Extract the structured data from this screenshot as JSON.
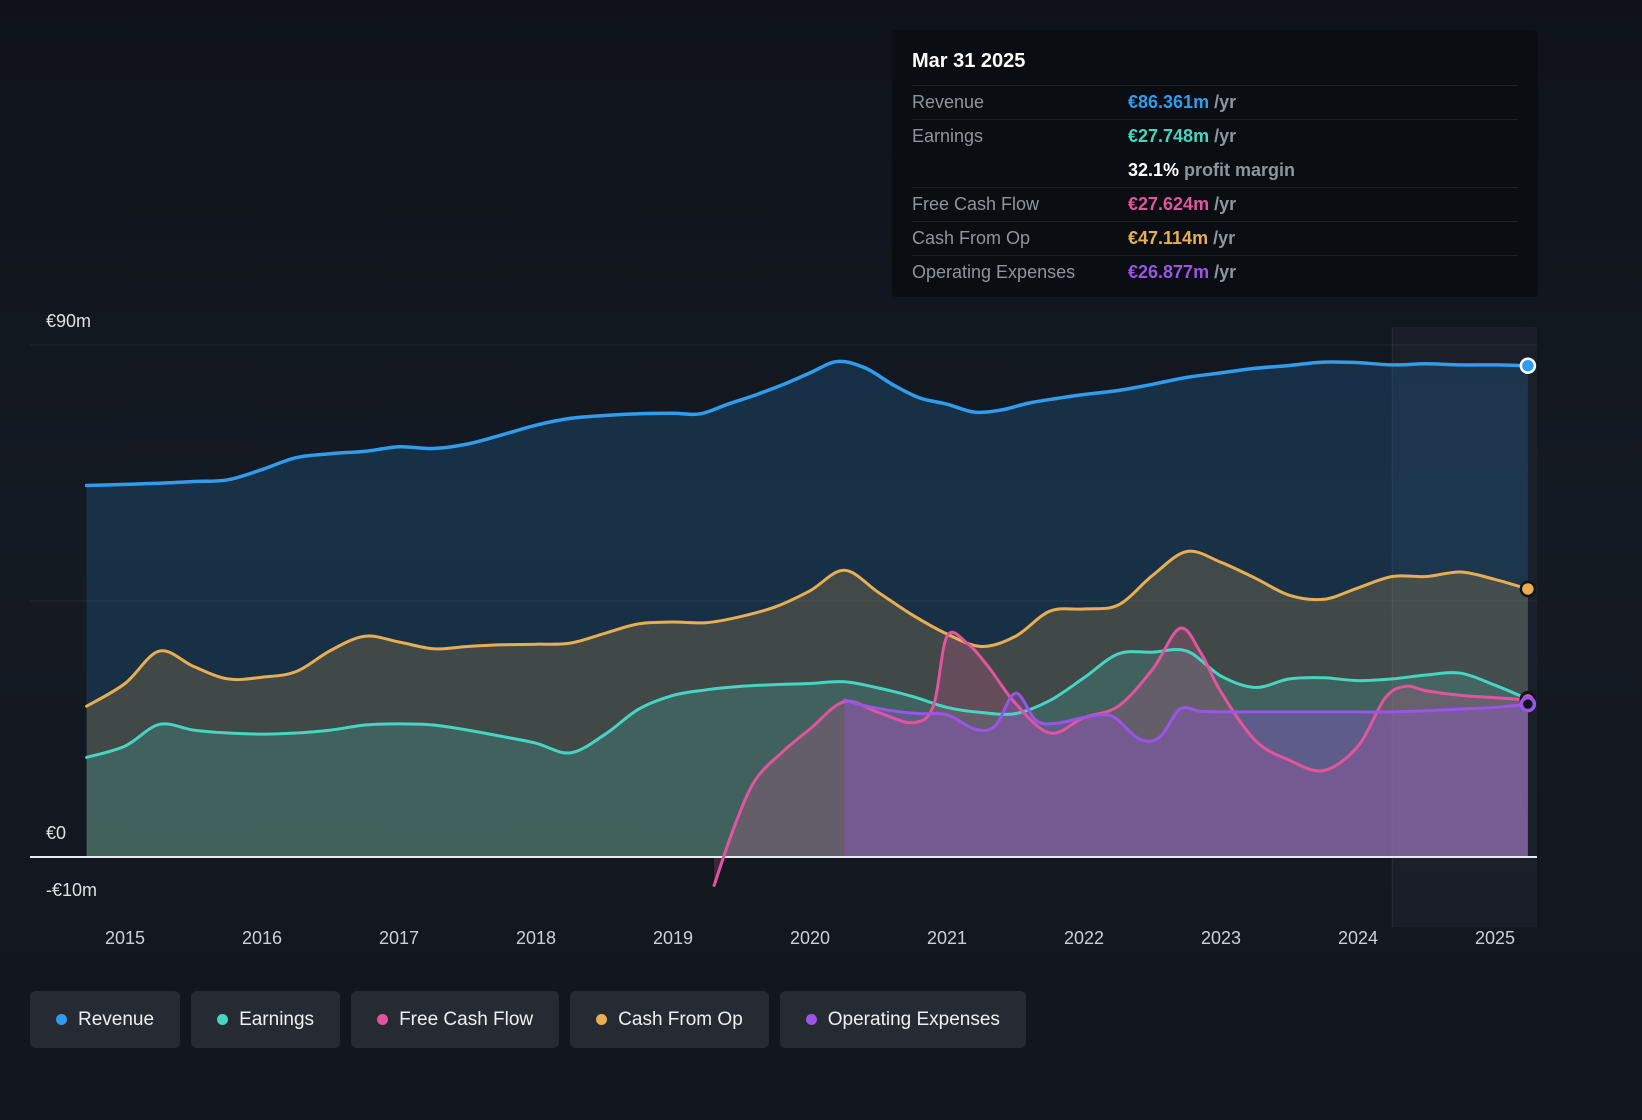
{
  "tooltip": {
    "date": "Mar 31 2025",
    "rows": [
      {
        "label": "Revenue",
        "value": "€86.361m",
        "suffix": " /yr",
        "color": "#2f9ced",
        "divider": true
      },
      {
        "label": "Earnings",
        "value": "€27.748m",
        "suffix": " /yr",
        "color": "#46d5c1",
        "divider": true
      },
      {
        "label": "",
        "value": "32.1%",
        "suffix": " profit margin",
        "color": "#ffffff",
        "divider": false
      },
      {
        "label": "Free Cash Flow",
        "value": "€27.624m",
        "suffix": " /yr",
        "color": "#e2559c",
        "divider": true
      },
      {
        "label": "Cash From Op",
        "value": "€47.114m",
        "suffix": " /yr",
        "color": "#e8ae52",
        "divider": true
      },
      {
        "label": "Operating Expenses",
        "value": "€26.877m",
        "suffix": " /yr",
        "color": "#9b55e6",
        "divider": true
      }
    ]
  },
  "legend": [
    {
      "label": "Revenue",
      "color": "#2f9ced"
    },
    {
      "label": "Earnings",
      "color": "#46d5c1"
    },
    {
      "label": "Free Cash Flow",
      "color": "#e2559c"
    },
    {
      "label": "Cash From Op",
      "color": "#e8ae52"
    },
    {
      "label": "Operating Expenses",
      "color": "#9b55e6"
    }
  ],
  "chart_data": {
    "type": "area",
    "title": "Financial history: Revenue, Earnings, Free Cash Flow, Cash From Op, Operating Expenses (€m per year)",
    "x_axis": {
      "unit": "year",
      "range": [
        2014.72,
        2025.24
      ],
      "ticks": [
        2015,
        2016,
        2017,
        2018,
        2019,
        2020,
        2021,
        2022,
        2023,
        2024,
        2025
      ]
    },
    "y_axis": {
      "unit": "€m",
      "range": [
        -10,
        90
      ],
      "labels": [
        {
          "text": "€90m",
          "value": 90
        },
        {
          "text": "€0",
          "value": 0
        },
        {
          "text": "-€10m",
          "value": -10
        }
      ],
      "gridline_values": [
        90,
        45
      ]
    },
    "highlight_band_start": 2024.25,
    "series": [
      {
        "name": "Revenue",
        "color": "#2f9ced",
        "fill_opacity": 0.18,
        "marker": "light",
        "points": [
          [
            2014.72,
            65.3
          ],
          [
            2015,
            65.5
          ],
          [
            2015.25,
            65.7
          ],
          [
            2015.5,
            66.0
          ],
          [
            2015.75,
            66.3
          ],
          [
            2016,
            68.1
          ],
          [
            2016.25,
            70.2
          ],
          [
            2016.5,
            70.9
          ],
          [
            2016.75,
            71.3
          ],
          [
            2017,
            72.1
          ],
          [
            2017.25,
            71.8
          ],
          [
            2017.5,
            72.6
          ],
          [
            2017.75,
            74.2
          ],
          [
            2018,
            75.9
          ],
          [
            2018.25,
            77.1
          ],
          [
            2018.5,
            77.6
          ],
          [
            2018.75,
            77.9
          ],
          [
            2019,
            78.0
          ],
          [
            2019.2,
            77.9
          ],
          [
            2019.4,
            79.6
          ],
          [
            2019.6,
            81.2
          ],
          [
            2019.8,
            83.0
          ],
          [
            2020,
            85.1
          ],
          [
            2020.2,
            87.1
          ],
          [
            2020.4,
            86.0
          ],
          [
            2020.6,
            83.1
          ],
          [
            2020.8,
            80.7
          ],
          [
            2021,
            79.6
          ],
          [
            2021.2,
            78.2
          ],
          [
            2021.4,
            78.6
          ],
          [
            2021.6,
            79.8
          ],
          [
            2021.8,
            80.6
          ],
          [
            2022,
            81.3
          ],
          [
            2022.25,
            82.0
          ],
          [
            2022.5,
            83.1
          ],
          [
            2022.75,
            84.3
          ],
          [
            2023,
            85.1
          ],
          [
            2023.25,
            85.9
          ],
          [
            2023.5,
            86.4
          ],
          [
            2023.75,
            87.0
          ],
          [
            2024,
            86.9
          ],
          [
            2024.25,
            86.5
          ],
          [
            2024.5,
            86.7
          ],
          [
            2024.75,
            86.5
          ],
          [
            2025,
            86.5
          ],
          [
            2025.24,
            86.361
          ]
        ]
      },
      {
        "name": "Cash From Op",
        "color": "#e8ae52",
        "fill_opacity": 0.2,
        "marker": "dark",
        "points": [
          [
            2014.72,
            26.5
          ],
          [
            2015,
            30.5
          ],
          [
            2015.25,
            36.2
          ],
          [
            2015.5,
            33.5
          ],
          [
            2015.75,
            31.3
          ],
          [
            2016,
            31.6
          ],
          [
            2016.25,
            32.6
          ],
          [
            2016.5,
            36.3
          ],
          [
            2016.75,
            38.8
          ],
          [
            2017,
            37.8
          ],
          [
            2017.25,
            36.6
          ],
          [
            2017.5,
            37.0
          ],
          [
            2017.75,
            37.3
          ],
          [
            2018,
            37.4
          ],
          [
            2018.25,
            37.6
          ],
          [
            2018.5,
            39.3
          ],
          [
            2018.75,
            41.0
          ],
          [
            2019,
            41.3
          ],
          [
            2019.25,
            41.2
          ],
          [
            2019.5,
            42.3
          ],
          [
            2019.75,
            44.0
          ],
          [
            2020,
            46.8
          ],
          [
            2020.25,
            50.4
          ],
          [
            2020.5,
            46.5
          ],
          [
            2020.75,
            42.5
          ],
          [
            2021,
            39.2
          ],
          [
            2021.25,
            37.0
          ],
          [
            2021.5,
            38.8
          ],
          [
            2021.75,
            43.2
          ],
          [
            2022,
            43.6
          ],
          [
            2022.25,
            44.3
          ],
          [
            2022.5,
            49.5
          ],
          [
            2022.75,
            53.7
          ],
          [
            2023,
            51.8
          ],
          [
            2023.25,
            49.0
          ],
          [
            2023.5,
            46.0
          ],
          [
            2023.75,
            45.3
          ],
          [
            2024,
            47.3
          ],
          [
            2024.25,
            49.3
          ],
          [
            2024.5,
            49.3
          ],
          [
            2024.75,
            50.1
          ],
          [
            2025,
            48.8
          ],
          [
            2025.24,
            47.114
          ]
        ]
      },
      {
        "name": "Earnings",
        "color": "#46d5c1",
        "fill_opacity": 0.18,
        "marker": "dark",
        "points": [
          [
            2014.72,
            17.5
          ],
          [
            2015,
            19.5
          ],
          [
            2015.25,
            23.3
          ],
          [
            2015.5,
            22.3
          ],
          [
            2015.75,
            21.8
          ],
          [
            2016,
            21.6
          ],
          [
            2016.25,
            21.8
          ],
          [
            2016.5,
            22.3
          ],
          [
            2016.75,
            23.2
          ],
          [
            2017,
            23.4
          ],
          [
            2017.25,
            23.2
          ],
          [
            2017.5,
            22.3
          ],
          [
            2017.75,
            21.2
          ],
          [
            2018,
            20.0
          ],
          [
            2018.25,
            18.3
          ],
          [
            2018.5,
            21.5
          ],
          [
            2018.75,
            26.0
          ],
          [
            2019,
            28.4
          ],
          [
            2019.25,
            29.4
          ],
          [
            2019.5,
            30.0
          ],
          [
            2019.75,
            30.3
          ],
          [
            2020,
            30.5
          ],
          [
            2020.25,
            30.8
          ],
          [
            2020.5,
            29.7
          ],
          [
            2020.75,
            28.2
          ],
          [
            2021,
            26.3
          ],
          [
            2021.25,
            25.4
          ],
          [
            2021.5,
            25.2
          ],
          [
            2021.75,
            27.5
          ],
          [
            2022,
            31.5
          ],
          [
            2022.25,
            35.7
          ],
          [
            2022.5,
            36.0
          ],
          [
            2022.75,
            36.2
          ],
          [
            2023,
            31.8
          ],
          [
            2023.25,
            29.8
          ],
          [
            2023.5,
            31.3
          ],
          [
            2023.75,
            31.5
          ],
          [
            2024,
            31.0
          ],
          [
            2024.25,
            31.3
          ],
          [
            2024.5,
            32.0
          ],
          [
            2024.75,
            32.3
          ],
          [
            2025,
            30.2
          ],
          [
            2025.24,
            27.748
          ]
        ]
      },
      {
        "name": "Free Cash Flow",
        "color": "#e2559c",
        "fill_opacity": 0.22,
        "marker": "dark",
        "points": [
          [
            2019.3,
            -5.0
          ],
          [
            2019.45,
            5.5
          ],
          [
            2019.6,
            13.5
          ],
          [
            2019.8,
            18.5
          ],
          [
            2020,
            22.5
          ],
          [
            2020.25,
            27.3
          ],
          [
            2020.5,
            25.4
          ],
          [
            2020.75,
            23.6
          ],
          [
            2020.9,
            26.5
          ],
          [
            2021,
            38.8
          ],
          [
            2021.15,
            37.5
          ],
          [
            2021.3,
            33.5
          ],
          [
            2021.5,
            27.0
          ],
          [
            2021.75,
            21.8
          ],
          [
            2022,
            24.5
          ],
          [
            2022.25,
            26.5
          ],
          [
            2022.5,
            33.0
          ],
          [
            2022.7,
            40.2
          ],
          [
            2022.85,
            36.0
          ],
          [
            2023,
            29.0
          ],
          [
            2023.25,
            20.5
          ],
          [
            2023.5,
            17.0
          ],
          [
            2023.75,
            15.2
          ],
          [
            2024,
            19.5
          ],
          [
            2024.2,
            28.0
          ],
          [
            2024.35,
            30.0
          ],
          [
            2024.5,
            29.2
          ],
          [
            2024.75,
            28.4
          ],
          [
            2025,
            28.0
          ],
          [
            2025.24,
            27.624
          ]
        ]
      },
      {
        "name": "Operating Expenses",
        "color": "#9b55e6",
        "fill_opacity": 0.32,
        "marker": "ring",
        "points": [
          [
            2020.25,
            27.6
          ],
          [
            2020.4,
            26.6
          ],
          [
            2020.6,
            25.7
          ],
          [
            2020.8,
            25.2
          ],
          [
            2021,
            25.0
          ],
          [
            2021.2,
            22.5
          ],
          [
            2021.35,
            23.0
          ],
          [
            2021.5,
            28.8
          ],
          [
            2021.65,
            24.0
          ],
          [
            2021.8,
            23.5
          ],
          [
            2022,
            24.5
          ],
          [
            2022.2,
            24.8
          ],
          [
            2022.4,
            20.8
          ],
          [
            2022.55,
            21.0
          ],
          [
            2022.7,
            26.0
          ],
          [
            2022.85,
            25.6
          ],
          [
            2023,
            25.5
          ],
          [
            2023.25,
            25.5
          ],
          [
            2023.5,
            25.5
          ],
          [
            2023.75,
            25.5
          ],
          [
            2024,
            25.5
          ],
          [
            2024.25,
            25.5
          ],
          [
            2024.5,
            25.7
          ],
          [
            2024.75,
            26.0
          ],
          [
            2025,
            26.3
          ],
          [
            2025.24,
            26.877
          ]
        ]
      }
    ]
  }
}
